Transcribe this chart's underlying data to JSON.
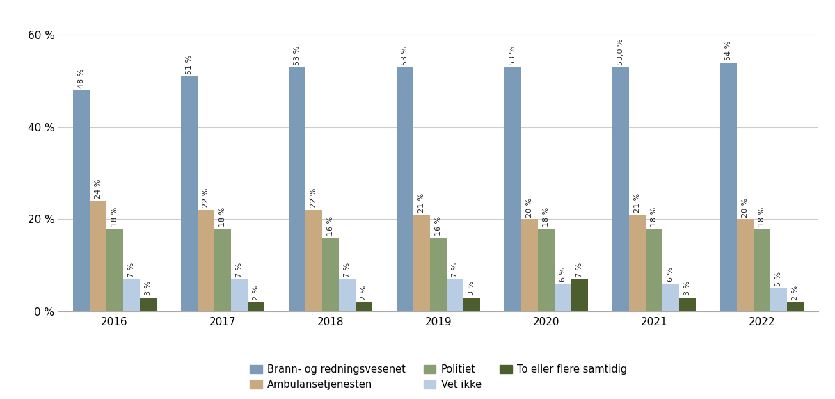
{
  "years": [
    "2016",
    "2017",
    "2018",
    "2019",
    "2020",
    "2021",
    "2022"
  ],
  "series": {
    "Brann- og redningsvesenet": [
      48,
      51,
      53,
      53,
      53,
      53,
      54
    ],
    "Ambulansetjenesten": [
      24,
      22,
      22,
      21,
      20,
      21,
      20
    ],
    "Politiet": [
      18,
      18,
      16,
      16,
      18,
      18,
      18
    ],
    "Vet ikke": [
      7,
      7,
      7,
      7,
      6,
      6,
      5
    ],
    "To eller flere samtidig": [
      3,
      2,
      2,
      3,
      7,
      3,
      2
    ]
  },
  "labels_override": {
    "2021_Brann- og redningsvesenet": "53,0"
  },
  "colors": {
    "Brann- og redningsvesenet": "#7b9bb8",
    "Ambulansetjenesten": "#c9aa80",
    "Politiet": "#8a9e74",
    "Vet ikke": "#b8cce4",
    "To eller flere samtidig": "#4d5e2e"
  },
  "ylim": [
    0,
    65
  ],
  "yticks": [
    0,
    20,
    40,
    60
  ],
  "ytick_labels": [
    "0 %",
    "20 %",
    "40 %",
    "60 %"
  ],
  "legend_order": [
    "Brann- og redningsvesenet",
    "Ambulansetjenesten",
    "Politiet",
    "Vet ikke",
    "To eller flere samtidig"
  ],
  "bar_width": 0.155,
  "label_fontsize": 8.0,
  "axis_fontsize": 11,
  "legend_fontsize": 10.5,
  "background_color": "#ffffff",
  "group_width": 1.0
}
